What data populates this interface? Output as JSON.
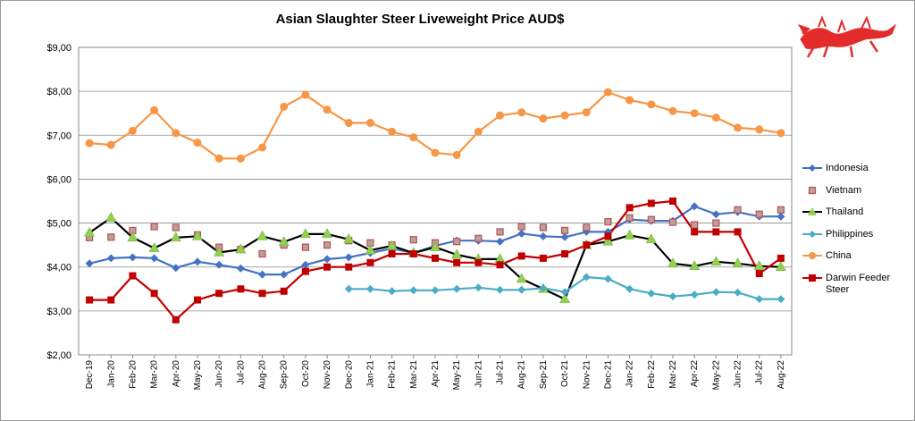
{
  "chart_data": {
    "type": "line",
    "title": "Asian Slaughter Steer Liveweight Price AUD$",
    "ylim": [
      2,
      9
    ],
    "yticks": [
      "$2,00",
      "$3,00",
      "$4,00",
      "$5,00",
      "$6,00",
      "$7,00",
      "$8,00",
      "$9,00"
    ],
    "categories": [
      "Dec-19",
      "Jan-20",
      "Feb-20",
      "Mar-20",
      "Apr-20",
      "May-20",
      "Jun-20",
      "Jul-20",
      "Aug-20",
      "Sep-20",
      "Oct-20",
      "Nov-20",
      "Dec-20",
      "Jan-21",
      "Feb-21",
      "Mar-21",
      "Apr-21",
      "May-21",
      "Jun-21",
      "Jul-21",
      "Aug-21",
      "Sep-21",
      "Oct-21",
      "Nov-21",
      "Dec-21",
      "Jan-22",
      "Feb-22",
      "Mar-22",
      "Apr-22",
      "May-22",
      "Jun-22",
      "Jul-22",
      "Aug-22"
    ],
    "grid": true,
    "legend_position": "right",
    "series": [
      {
        "name": "Indonesia",
        "color": "#4472c4",
        "marker": "diamond",
        "line": true,
        "values": [
          4.08,
          4.2,
          4.22,
          4.2,
          3.98,
          4.12,
          4.05,
          3.97,
          3.83,
          3.83,
          4.05,
          4.18,
          4.22,
          4.32,
          4.42,
          4.32,
          4.48,
          4.6,
          4.6,
          4.58,
          4.76,
          4.7,
          4.68,
          4.8,
          4.8,
          5.08,
          5.05,
          5.05,
          5.38,
          5.2,
          5.25,
          5.15,
          5.15
        ]
      },
      {
        "name": "Vietnam",
        "color": "#c0504d",
        "marker": "square-gray",
        "line": false,
        "values": [
          4.67,
          4.68,
          4.83,
          4.92,
          4.9,
          4.73,
          4.45,
          4.4,
          4.3,
          4.5,
          4.45,
          4.5,
          4.6,
          4.55,
          4.5,
          4.62,
          4.55,
          4.58,
          4.65,
          4.8,
          4.92,
          4.9,
          4.83,
          4.9,
          5.03,
          5.12,
          5.08,
          5.02,
          4.96,
          5.0,
          5.3,
          5.2,
          5.3
        ]
      },
      {
        "name": "Thailand",
        "color": "#000000",
        "marker": "triangle",
        "line": true,
        "values": [
          4.78,
          5.12,
          4.67,
          4.43,
          4.67,
          4.7,
          4.33,
          4.4,
          4.7,
          4.57,
          4.75,
          4.75,
          4.63,
          4.38,
          4.48,
          4.32,
          4.45,
          4.28,
          4.18,
          4.18,
          3.73,
          3.5,
          3.27,
          4.5,
          4.58,
          4.72,
          4.63,
          4.08,
          4.02,
          4.12,
          4.08,
          4.02,
          4.0
        ]
      },
      {
        "name": "Philippines",
        "color": "#4bacc6",
        "marker": "diamond",
        "line": true,
        "values": [
          null,
          null,
          null,
          null,
          null,
          null,
          null,
          null,
          null,
          null,
          null,
          null,
          3.5,
          3.5,
          3.45,
          3.47,
          3.47,
          3.5,
          3.53,
          3.48,
          3.48,
          3.52,
          3.43,
          3.77,
          3.73,
          3.5,
          3.4,
          3.33,
          3.37,
          3.43,
          3.42,
          3.27,
          3.27
        ]
      },
      {
        "name": "China",
        "color": "#f79646",
        "marker": "circle",
        "line": true,
        "values": [
          6.82,
          6.78,
          7.1,
          7.57,
          7.05,
          6.83,
          6.47,
          6.47,
          6.72,
          7.65,
          7.92,
          7.58,
          7.28,
          7.28,
          7.08,
          6.95,
          6.6,
          6.55,
          7.08,
          7.45,
          7.52,
          7.38,
          7.45,
          7.52,
          7.98,
          7.8,
          7.7,
          7.55,
          7.5,
          7.4,
          7.17,
          7.13,
          7.05
        ]
      },
      {
        "name": "Darwin Feeder Steer",
        "color": "#c00000",
        "marker": "square",
        "line": true,
        "values": [
          3.25,
          3.25,
          3.8,
          3.4,
          2.8,
          3.25,
          3.4,
          3.5,
          3.4,
          3.45,
          3.9,
          4.0,
          4.0,
          4.1,
          4.3,
          4.3,
          4.2,
          4.1,
          4.1,
          4.05,
          4.25,
          4.2,
          4.3,
          4.5,
          4.7,
          5.35,
          5.45,
          5.5,
          4.8,
          4.8,
          4.8,
          3.85,
          4.2
        ]
      }
    ]
  },
  "logo": {
    "name": "dragon-logo",
    "color": "#e32b2b"
  }
}
